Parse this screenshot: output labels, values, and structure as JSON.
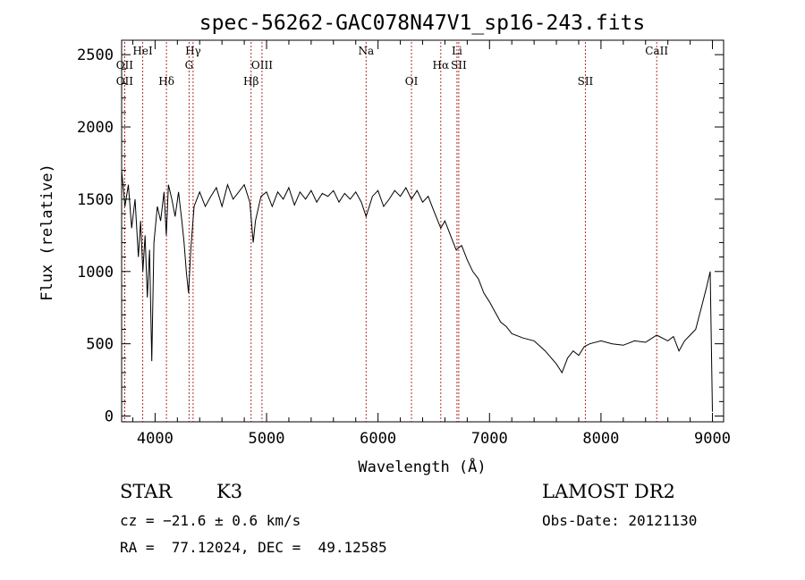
{
  "chart_data": {
    "type": "line",
    "title": "spec-56262-GAC078N47V1_sp16-243.fits",
    "xlabel": "Wavelength (Å)",
    "ylabel": "Flux (relative)",
    "xlim": [
      3700,
      9100
    ],
    "ylim": [
      -40,
      2600
    ],
    "xticks": [
      4000,
      5000,
      6000,
      7000,
      8000,
      9000
    ],
    "yticks": [
      0,
      500,
      1000,
      1500,
      2000,
      2500
    ],
    "grid": false,
    "series": [
      {
        "color": "#000000",
        "points": [
          [
            3700,
            1700
          ],
          [
            3730,
            1450
          ],
          [
            3760,
            1600
          ],
          [
            3790,
            1300
          ],
          [
            3820,
            1500
          ],
          [
            3850,
            1100
          ],
          [
            3870,
            1350
          ],
          [
            3890,
            1000
          ],
          [
            3910,
            1250
          ],
          [
            3930,
            820
          ],
          [
            3950,
            1150
          ],
          [
            3970,
            380
          ],
          [
            3990,
            1200
          ],
          [
            4020,
            1450
          ],
          [
            4050,
            1350
          ],
          [
            4080,
            1550
          ],
          [
            4100,
            1250
          ],
          [
            4120,
            1600
          ],
          [
            4150,
            1500
          ],
          [
            4180,
            1380
          ],
          [
            4210,
            1550
          ],
          [
            4240,
            1350
          ],
          [
            4260,
            1200
          ],
          [
            4280,
            1000
          ],
          [
            4300,
            850
          ],
          [
            4320,
            1150
          ],
          [
            4350,
            1450
          ],
          [
            4400,
            1550
          ],
          [
            4450,
            1450
          ],
          [
            4500,
            1520
          ],
          [
            4550,
            1580
          ],
          [
            4600,
            1450
          ],
          [
            4650,
            1600
          ],
          [
            4700,
            1500
          ],
          [
            4750,
            1550
          ],
          [
            4800,
            1600
          ],
          [
            4850,
            1480
          ],
          [
            4880,
            1200
          ],
          [
            4900,
            1350
          ],
          [
            4950,
            1520
          ],
          [
            5000,
            1550
          ],
          [
            5050,
            1450
          ],
          [
            5100,
            1550
          ],
          [
            5150,
            1500
          ],
          [
            5200,
            1580
          ],
          [
            5250,
            1460
          ],
          [
            5300,
            1550
          ],
          [
            5350,
            1500
          ],
          [
            5400,
            1560
          ],
          [
            5450,
            1480
          ],
          [
            5500,
            1540
          ],
          [
            5550,
            1520
          ],
          [
            5600,
            1560
          ],
          [
            5650,
            1480
          ],
          [
            5700,
            1540
          ],
          [
            5750,
            1500
          ],
          [
            5800,
            1550
          ],
          [
            5850,
            1480
          ],
          [
            5893,
            1380
          ],
          [
            5950,
            1520
          ],
          [
            6000,
            1560
          ],
          [
            6050,
            1450
          ],
          [
            6100,
            1500
          ],
          [
            6150,
            1560
          ],
          [
            6200,
            1520
          ],
          [
            6250,
            1580
          ],
          [
            6300,
            1500
          ],
          [
            6350,
            1560
          ],
          [
            6400,
            1480
          ],
          [
            6450,
            1520
          ],
          [
            6500,
            1420
          ],
          [
            6563,
            1300
          ],
          [
            6600,
            1350
          ],
          [
            6650,
            1250
          ],
          [
            6700,
            1150
          ],
          [
            6750,
            1180
          ],
          [
            6800,
            1080
          ],
          [
            6850,
            1000
          ],
          [
            6900,
            950
          ],
          [
            6950,
            850
          ],
          [
            7000,
            790
          ],
          [
            7050,
            720
          ],
          [
            7100,
            650
          ],
          [
            7150,
            620
          ],
          [
            7200,
            570
          ],
          [
            7300,
            540
          ],
          [
            7400,
            520
          ],
          [
            7500,
            450
          ],
          [
            7600,
            360
          ],
          [
            7650,
            300
          ],
          [
            7700,
            400
          ],
          [
            7750,
            450
          ],
          [
            7800,
            420
          ],
          [
            7850,
            480
          ],
          [
            7900,
            500
          ],
          [
            8000,
            520
          ],
          [
            8100,
            500
          ],
          [
            8200,
            490
          ],
          [
            8300,
            520
          ],
          [
            8400,
            510
          ],
          [
            8500,
            560
          ],
          [
            8600,
            520
          ],
          [
            8650,
            550
          ],
          [
            8700,
            450
          ],
          [
            8750,
            520
          ],
          [
            8800,
            560
          ],
          [
            8850,
            600
          ],
          [
            8900,
            750
          ],
          [
            8950,
            900
          ],
          [
            8980,
            1000
          ],
          [
            9000,
            30
          ]
        ]
      }
    ],
    "lines": [
      {
        "label": "OII",
        "wave": 3727,
        "row": 2
      },
      {
        "label": "OII",
        "wave": 3727,
        "row": 3
      },
      {
        "label": "HeI",
        "wave": 3889,
        "row": 1
      },
      {
        "label": "Hδ",
        "wave": 4102,
        "row": 3
      },
      {
        "label": "Hγ",
        "wave": 4341,
        "row": 1
      },
      {
        "label": "G",
        "wave": 4305,
        "row": 2
      },
      {
        "label": "Hβ",
        "wave": 4861,
        "row": 3
      },
      {
        "label": "OIII",
        "wave": 4959,
        "row": 2
      },
      {
        "label": "Na",
        "wave": 5893,
        "row": 1
      },
      {
        "label": "OI",
        "wave": 6300,
        "row": 3
      },
      {
        "label": "Hα",
        "wave": 6563,
        "row": 2
      },
      {
        "label": "Li",
        "wave": 6708,
        "row": 1
      },
      {
        "label": "SII",
        "wave": 6724,
        "row": 2
      },
      {
        "label": "SII",
        "wave": 7860,
        "row": 3
      },
      {
        "label": "CaII",
        "wave": 8500,
        "row": 1
      }
    ]
  },
  "info": {
    "class": "STAR",
    "subclass": "K3",
    "survey": "LAMOST DR2",
    "cz": "cz = −21.6 ± 0.6 km/s",
    "obsdate": "Obs-Date: 20121130",
    "radec": "RA =  77.12024, DEC =  49.12585"
  },
  "colors": {
    "spectrum": "#000000",
    "linemark": "#b03030"
  }
}
